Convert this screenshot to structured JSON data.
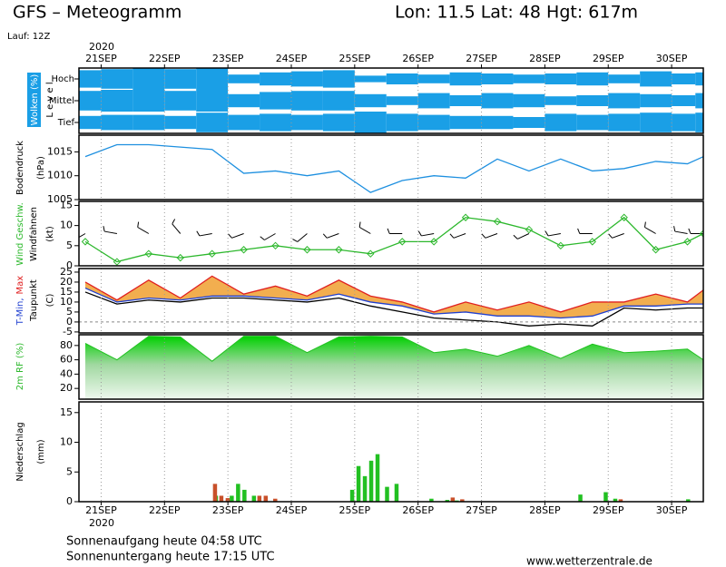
{
  "header": {
    "title": "GFS – Meteogramm",
    "location": "Lon: 11.5 Lat: 48 Hgt: 617m",
    "run": "Lauf: 12Z"
  },
  "footer": {
    "sunrise": "Sonnenaufgang heute 04:58 UTC",
    "sunset": "Sonnenuntergang heute 17:15 UTC",
    "source": "www.wetterzentrale.de"
  },
  "chart_data": [
    {
      "type": "cloud",
      "ylabel": "Wolken (%)",
      "level_label": "L e v e l",
      "year": "2020",
      "xlim": [
        20.65,
        30.5
      ],
      "xticks": [
        {
          "value": 21,
          "label": "21SEP"
        },
        {
          "value": 22,
          "label": "22SEP"
        },
        {
          "value": 23,
          "label": "23SEP"
        },
        {
          "value": 24,
          "label": "24SEP"
        },
        {
          "value": 25,
          "label": "25SEP"
        },
        {
          "value": 26,
          "label": "26SEP"
        },
        {
          "value": 27,
          "label": "27SEP"
        },
        {
          "value": 28,
          "label": "28SEP"
        },
        {
          "value": 29,
          "label": "29SEP"
        },
        {
          "value": 30,
          "label": "30SEP"
        }
      ],
      "grid": true,
      "x": [
        20.75,
        21.25,
        21.75,
        22.25,
        22.75,
        23.25,
        23.75,
        24.25,
        24.75,
        25.25,
        25.75,
        26.25,
        26.75,
        27.25,
        27.75,
        28.25,
        28.75,
        29.25,
        29.75,
        30.25,
        30.5
      ],
      "series": [
        {
          "name": "Hoch",
          "color": "#1a9fe6",
          "values": [
            80,
            90,
            100,
            90,
            100,
            40,
            60,
            70,
            80,
            30,
            50,
            40,
            60,
            50,
            40,
            50,
            60,
            40,
            70,
            50,
            60
          ]
        },
        {
          "name": "Mittel",
          "color": "#1a9fe6",
          "values": [
            90,
            100,
            100,
            90,
            100,
            60,
            80,
            90,
            90,
            60,
            40,
            70,
            50,
            70,
            60,
            40,
            50,
            70,
            60,
            50,
            70
          ]
        },
        {
          "name": "Tief",
          "color": "#1a9fe6",
          "values": [
            60,
            70,
            70,
            60,
            90,
            70,
            80,
            70,
            80,
            100,
            80,
            70,
            60,
            60,
            50,
            80,
            70,
            80,
            90,
            80,
            90
          ]
        }
      ]
    },
    {
      "type": "line",
      "ylabel": "Bodendruck",
      "unit": "(hPa)",
      "xlim": [
        20.65,
        30.5
      ],
      "ylim": [
        1005,
        1018.5
      ],
      "yticks": [
        1005,
        1010,
        1015
      ],
      "x": [
        20.75,
        21.25,
        21.75,
        22.25,
        22.75,
        23.25,
        23.75,
        24.25,
        24.75,
        25.25,
        25.75,
        26.25,
        26.75,
        27.25,
        27.75,
        28.25,
        28.75,
        29.25,
        29.75,
        30.25,
        30.5
      ],
      "series": [
        {
          "color": "#1e90e0",
          "values": [
            1014,
            1016.5,
            1016.5,
            1016,
            1015.5,
            1010.5,
            1011,
            1010,
            1011,
            1006.5,
            1009,
            1010,
            1009.5,
            1013.5,
            1011,
            1013.5,
            1011,
            1011.5,
            1013,
            1012.5,
            1014
          ]
        }
      ]
    },
    {
      "type": "line",
      "ylabel": "Wind Geschw.",
      "ylabel2": "Windfahnen",
      "unit": "(kt)",
      "xlim": [
        20.65,
        30.5
      ],
      "ylim": [
        0,
        16
      ],
      "yticks": [
        0,
        5,
        10,
        15
      ],
      "x": [
        20.75,
        21.25,
        21.75,
        22.25,
        22.75,
        23.25,
        23.75,
        24.25,
        24.75,
        25.25,
        25.75,
        26.25,
        26.75,
        27.25,
        27.75,
        28.25,
        28.75,
        29.25,
        29.75,
        30.25,
        30.5
      ],
      "series": [
        {
          "color": "#2db82d",
          "marker": "diamond",
          "values": [
            6,
            1,
            3,
            2,
            3,
            4,
            5,
            4,
            4,
            3,
            6,
            6,
            12,
            11,
            9,
            5,
            6,
            12,
            4,
            6,
            8
          ]
        }
      ],
      "barbs": [
        240,
        280,
        300,
        320,
        260,
        250,
        240,
        230,
        250,
        300,
        270,
        260,
        250,
        250,
        245,
        260,
        270,
        250,
        300,
        280,
        270
      ]
    },
    {
      "type": "line",
      "ylabel_min": "T-Min,",
      "ylabel_max": "Max",
      "ylabel2": "Taupunkt",
      "unit": "(C)",
      "xlim": [
        20.65,
        30.5
      ],
      "ylim": [
        -5.5,
        26.8
      ],
      "yticks": [
        -5,
        0,
        5,
        10,
        15,
        20,
        25
      ],
      "x": [
        20.75,
        21.25,
        21.75,
        22.25,
        22.75,
        23.25,
        23.75,
        24.25,
        24.75,
        25.25,
        25.75,
        26.25,
        26.75,
        27.25,
        27.75,
        28.25,
        28.75,
        29.25,
        29.75,
        30.25,
        30.5
      ],
      "fill_between": {
        "series": [
          0,
          1
        ],
        "color": "#f0a030"
      },
      "series": [
        {
          "color": "#e02020",
          "values": [
            20,
            11,
            21,
            12,
            23,
            14,
            18,
            13,
            21,
            13,
            10,
            5,
            10,
            6,
            10,
            5,
            10,
            10,
            14,
            10,
            16
          ]
        },
        {
          "color": "#2040d0",
          "values": [
            17,
            10,
            12,
            11,
            13,
            13,
            12,
            11,
            14,
            10,
            8,
            4,
            5,
            3,
            3,
            2,
            3,
            8,
            8,
            9,
            9
          ]
        },
        {
          "color": "#000000",
          "values": [
            15,
            9,
            11,
            10,
            12,
            12,
            11,
            10,
            12,
            8,
            5,
            2,
            1,
            0,
            -2,
            -1,
            -2,
            7,
            6,
            7,
            7
          ]
        }
      ]
    },
    {
      "type": "area",
      "ylabel": "2m RF (%)",
      "xlim": [
        20.65,
        30.5
      ],
      "ylim": [
        5,
        95
      ],
      "yticks": [
        20,
        40,
        60,
        80
      ],
      "x": [
        20.75,
        21.25,
        21.75,
        22.25,
        22.75,
        23.25,
        23.75,
        24.25,
        24.75,
        25.25,
        25.75,
        26.25,
        26.75,
        27.25,
        27.75,
        28.25,
        28.75,
        29.25,
        29.75,
        30.25,
        30.5
      ],
      "series": [
        {
          "color": "#22c022",
          "values": [
            83,
            60,
            93,
            92,
            58,
            93,
            93,
            70,
            92,
            93,
            92,
            70,
            75,
            65,
            80,
            62,
            82,
            70,
            72,
            75,
            60
          ]
        }
      ]
    },
    {
      "type": "bar",
      "ylabel": "Niederschlag",
      "unit": "(mm)",
      "year": "2020",
      "xlim": [
        20.65,
        30.5
      ],
      "ylim": [
        0,
        16.8
      ],
      "yticks": [
        0,
        5,
        10,
        15
      ],
      "xticks": [
        {
          "value": 21,
          "label": "21SEP"
        },
        {
          "value": 22,
          "label": "22SEP"
        },
        {
          "value": 23,
          "label": "23SEP"
        },
        {
          "value": 24,
          "label": "24SEP"
        },
        {
          "value": 25,
          "label": "25SEP"
        },
        {
          "value": 26,
          "label": "26SEP"
        },
        {
          "value": 27,
          "label": "27SEP"
        },
        {
          "value": 28,
          "label": "28SEP"
        },
        {
          "value": 29,
          "label": "29SEP"
        },
        {
          "value": 30,
          "label": "30SEP"
        }
      ],
      "grid": true,
      "x": [
        22.75,
        22.85,
        22.95,
        23.1,
        23.2,
        23.3,
        23.45,
        23.55,
        23.7,
        25.0,
        25.1,
        25.2,
        25.3,
        25.4,
        25.55,
        25.7,
        26.25,
        26.5,
        26.65,
        28.6,
        29.0,
        29.15,
        30.3
      ],
      "series": [
        {
          "color": "#22c022",
          "values": [
            0,
            1,
            0,
            1,
            3,
            2,
            1,
            0,
            0,
            2,
            6,
            4.3,
            6.9,
            8,
            2.5,
            3,
            0.5,
            0.3,
            0.2,
            1.2,
            1.6,
            0.5,
            0.4
          ]
        },
        {
          "color": "#c8502a",
          "values": [
            3,
            1,
            0.6,
            0,
            0,
            0,
            1,
            1,
            0.5,
            0,
            0,
            0,
            0,
            0,
            0,
            0,
            0,
            0.7,
            0.4,
            0,
            0,
            0.4,
            0
          ]
        }
      ]
    }
  ]
}
